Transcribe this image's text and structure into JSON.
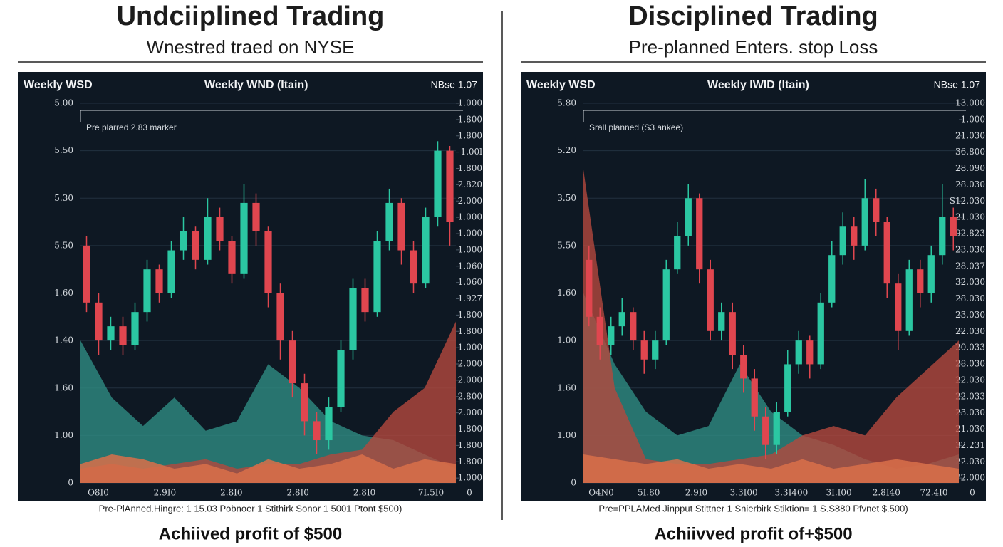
{
  "chart_data": [
    {
      "type": "candlestick",
      "title": "Undciiplined Trading",
      "subtitle": "Wnestred traed on NYSE",
      "header_left": "Weekly WSD",
      "header_center": "Weekly WND (Itain)",
      "header_right": "NBse 1.07",
      "annotation": "Pre plarred 2.83 marker",
      "caption": "Pre-PlAnned.Hingre: 1 15.03 Pobnoer 1 Stithirk Sonor 1 5001 Ptont $500)",
      "result": "Achiived profit of $500",
      "ylim": [
        0,
        8
      ],
      "yticks": [
        {
          "value": 0,
          "label": "0"
        },
        {
          "value": 1,
          "label": "1.00"
        },
        {
          "value": 2,
          "label": "1.60"
        },
        {
          "value": 3,
          "label": "1.40"
        },
        {
          "value": 4,
          "label": "1.60"
        },
        {
          "value": 5,
          "label": "5.50"
        },
        {
          "value": 6,
          "label": "5.30"
        },
        {
          "value": 7,
          "label": "5.50"
        },
        {
          "value": 8,
          "label": "5.00"
        }
      ],
      "y2lim": [
        -0.3,
        23
      ],
      "y2ticks": [
        {
          "value": 0,
          "label": "1.000"
        },
        {
          "value": 1,
          "label": "1.800"
        },
        {
          "value": 2,
          "label": "1.800"
        },
        {
          "value": 3,
          "label": "1.800"
        },
        {
          "value": 4,
          "label": "2.000"
        },
        {
          "value": 5,
          "label": "2.800"
        },
        {
          "value": 6,
          "label": "2.000"
        },
        {
          "value": 7,
          "label": "2.000"
        },
        {
          "value": 8,
          "label": "1.000"
        },
        {
          "value": 9,
          "label": "1.800"
        },
        {
          "value": 10,
          "label": "1.800"
        },
        {
          "value": 11,
          "label": "1.927"
        },
        {
          "value": 12,
          "label": "1.060"
        },
        {
          "value": 13,
          "label": "1.060"
        },
        {
          "value": 14,
          "label": "1.000"
        },
        {
          "value": 15,
          "label": "1.000"
        },
        {
          "value": 16,
          "label": "1.000"
        },
        {
          "value": 17,
          "label": "2.000"
        },
        {
          "value": 18,
          "label": "2.820"
        },
        {
          "value": 19,
          "label": "1.800"
        },
        {
          "value": 20,
          "label": "1.00l"
        },
        {
          "value": 21,
          "label": "1.800"
        },
        {
          "value": 22,
          "label": "1.800"
        },
        {
          "value": 23,
          "label": "1.000"
        }
      ],
      "xlabels": [
        "O8I0",
        "2.9I0",
        "2.8I0",
        "2.8I0",
        "2.8I0",
        "7I.5I0"
      ],
      "corner_label": "0",
      "up_color": "#2bc7a2",
      "down_color": "#e0464f",
      "open": [
        5.0,
        3.8,
        3.0,
        3.3,
        2.9,
        3.6,
        4.5,
        4.0,
        4.9,
        5.3,
        4.7,
        5.6,
        5.1,
        4.4,
        5.9,
        5.3,
        4.0,
        3.0,
        2.1,
        1.3,
        0.9,
        1.6,
        2.8,
        4.1,
        3.6,
        5.1,
        5.9,
        4.9,
        4.2,
        5.6,
        7.0
      ],
      "high": [
        5.2,
        4.0,
        3.5,
        3.5,
        3.8,
        4.7,
        4.6,
        5.1,
        5.6,
        5.4,
        6.0,
        5.8,
        5.2,
        6.3,
        6.1,
        5.4,
        4.2,
        3.2,
        2.3,
        1.5,
        1.8,
        3.0,
        4.3,
        4.3,
        5.3,
        6.2,
        6.0,
        5.1,
        5.8,
        7.2,
        7.1
      ],
      "low": [
        3.6,
        2.7,
        2.8,
        2.7,
        2.8,
        3.4,
        3.8,
        3.9,
        4.7,
        4.5,
        4.6,
        4.9,
        4.2,
        4.3,
        5.0,
        3.7,
        2.6,
        1.8,
        1.0,
        0.6,
        0.7,
        1.5,
        2.6,
        3.4,
        3.5,
        4.9,
        4.6,
        4.0,
        4.1,
        5.4,
        5.0
      ],
      "close": [
        3.8,
        3.0,
        3.3,
        2.9,
        3.6,
        4.5,
        4.0,
        4.9,
        5.3,
        4.7,
        5.6,
        5.1,
        4.4,
        5.9,
        5.3,
        4.0,
        3.0,
        2.1,
        1.3,
        0.9,
        1.6,
        2.8,
        4.1,
        3.6,
        5.1,
        5.9,
        4.9,
        4.2,
        5.6,
        7.0,
        5.5
      ],
      "areas": [
        {
          "color": "#2f8c82",
          "values": [
            3.0,
            1.8,
            1.2,
            1.8,
            1.1,
            1.3,
            2.5,
            2.0,
            1.3,
            1.0,
            0.9,
            0.6,
            0.3
          ]
        },
        {
          "color": "#b4483d",
          "values": [
            0.3,
            0.4,
            0.3,
            0.4,
            0.5,
            0.3,
            0.4,
            0.4,
            0.6,
            0.7,
            1.5,
            2.0,
            3.4
          ]
        },
        {
          "color": "#d9704a",
          "values": [
            0.4,
            0.6,
            0.5,
            0.3,
            0.4,
            0.2,
            0.5,
            0.3,
            0.4,
            0.6,
            0.3,
            0.5,
            0.4
          ]
        }
      ]
    },
    {
      "type": "candlestick",
      "title": "Disciplined Trading",
      "subtitle": "Pre-planned Enters. stop Loss",
      "header_left": "Weekly WSD",
      "header_center": "Weekly IWID (Itain)",
      "header_right": "NBse 1.07",
      "annotation": "Srall planned (S3 ankee)",
      "caption": "Pre=PPLAMed Jinpput Stittner 1 Snierbirk Stiktion= 1 S.S880 Pfvnet $.500)",
      "result": "Achiivved profit of+$500",
      "ylim": [
        0,
        8
      ],
      "yticks": [
        {
          "value": 0,
          "label": "0"
        },
        {
          "value": 1,
          "label": "1.00"
        },
        {
          "value": 2,
          "label": "1.60"
        },
        {
          "value": 3,
          "label": "1.00"
        },
        {
          "value": 4,
          "label": "1.60"
        },
        {
          "value": 5,
          "label": "5.50"
        },
        {
          "value": 6,
          "label": "3.50"
        },
        {
          "value": 7,
          "label": "5.20"
        },
        {
          "value": 8,
          "label": "5.80"
        }
      ],
      "y2lim": [
        -0.3,
        23
      ],
      "y2ticks": [
        {
          "value": 0,
          "label": "72.000"
        },
        {
          "value": 1,
          "label": "22.030"
        },
        {
          "value": 2,
          "label": "32.231"
        },
        {
          "value": 3,
          "label": "21.030"
        },
        {
          "value": 4,
          "label": "23.030"
        },
        {
          "value": 5,
          "label": "22.033"
        },
        {
          "value": 6,
          "label": "22.030"
        },
        {
          "value": 7,
          "label": "28.030"
        },
        {
          "value": 8,
          "label": "20.033"
        },
        {
          "value": 9,
          "label": "22.030"
        },
        {
          "value": 10,
          "label": "23.030"
        },
        {
          "value": 11,
          "label": "28.030"
        },
        {
          "value": 12,
          "label": "32.030"
        },
        {
          "value": 13,
          "label": "28.037"
        },
        {
          "value": 14,
          "label": "23.030"
        },
        {
          "value": 15,
          "label": "92.823"
        },
        {
          "value": 16,
          "label": "21.030"
        },
        {
          "value": 17,
          "label": "S12.030"
        },
        {
          "value": 18,
          "label": "28.030"
        },
        {
          "value": 19,
          "label": "28.090"
        },
        {
          "value": 20,
          "label": "36.800"
        },
        {
          "value": 21,
          "label": "21.030"
        },
        {
          "value": 22,
          "label": "1.000"
        },
        {
          "value": 23,
          "label": "13.000"
        }
      ],
      "xlabels": [
        "O4N0",
        "5I.80",
        "2.9I0",
        "3.3I00",
        "3.3I400",
        "3I.I00",
        "2.8I40",
        "72.4I0"
      ],
      "corner_label": "0",
      "up_color": "#2bc7a2",
      "down_color": "#e0464f",
      "open": [
        4.7,
        3.5,
        2.9,
        3.3,
        3.6,
        3.0,
        2.6,
        3.0,
        4.5,
        5.2,
        6.0,
        4.5,
        3.2,
        3.6,
        2.7,
        2.2,
        1.4,
        0.8,
        1.5,
        2.5,
        3.0,
        2.5,
        3.8,
        4.8,
        5.4,
        5.0,
        6.0,
        5.5,
        4.2,
        3.2,
        4.5,
        4.0,
        4.8,
        5.6
      ],
      "high": [
        5.0,
        3.7,
        3.5,
        3.9,
        3.7,
        3.2,
        3.2,
        4.7,
        5.5,
        6.3,
        6.1,
        4.7,
        3.8,
        3.8,
        2.9,
        2.4,
        1.6,
        1.7,
        2.8,
        3.2,
        3.1,
        4.0,
        5.1,
        5.7,
        5.6,
        6.4,
        6.2,
        5.6,
        4.4,
        4.7,
        4.7,
        5.0,
        6.3,
        5.8
      ],
      "low": [
        3.3,
        2.6,
        2.7,
        3.1,
        2.8,
        2.3,
        2.4,
        2.9,
        4.4,
        5.0,
        4.2,
        3.0,
        3.0,
        2.4,
        1.9,
        1.1,
        0.5,
        0.6,
        1.4,
        2.3,
        2.2,
        2.4,
        3.7,
        4.6,
        4.7,
        4.9,
        5.2,
        3.9,
        2.8,
        3.1,
        3.7,
        3.8,
        4.6,
        4.9
      ],
      "close": [
        3.5,
        2.9,
        3.3,
        3.6,
        3.0,
        2.6,
        3.0,
        4.5,
        5.2,
        6.0,
        4.5,
        3.2,
        3.6,
        2.7,
        2.2,
        1.4,
        0.8,
        1.5,
        2.5,
        3.0,
        2.5,
        3.8,
        4.8,
        5.4,
        5.0,
        6.0,
        5.5,
        4.2,
        3.2,
        4.5,
        4.0,
        4.8,
        5.6,
        5.2
      ],
      "areas": [
        {
          "color": "#2f8c82",
          "values": [
            4.0,
            2.5,
            1.5,
            1.0,
            1.2,
            2.5,
            1.5,
            1.0,
            0.8,
            0.5,
            0.3,
            0.4,
            0.6
          ]
        },
        {
          "color": "#b4483d",
          "values": [
            6.6,
            2.0,
            0.5,
            0.4,
            0.4,
            0.5,
            0.6,
            1.0,
            1.2,
            1.0,
            1.8,
            2.4,
            3.0
          ]
        },
        {
          "color": "#d9704a",
          "values": [
            0.6,
            0.5,
            0.4,
            0.5,
            0.3,
            0.4,
            0.3,
            0.5,
            0.3,
            0.4,
            0.5,
            0.4,
            0.3
          ]
        }
      ]
    }
  ]
}
